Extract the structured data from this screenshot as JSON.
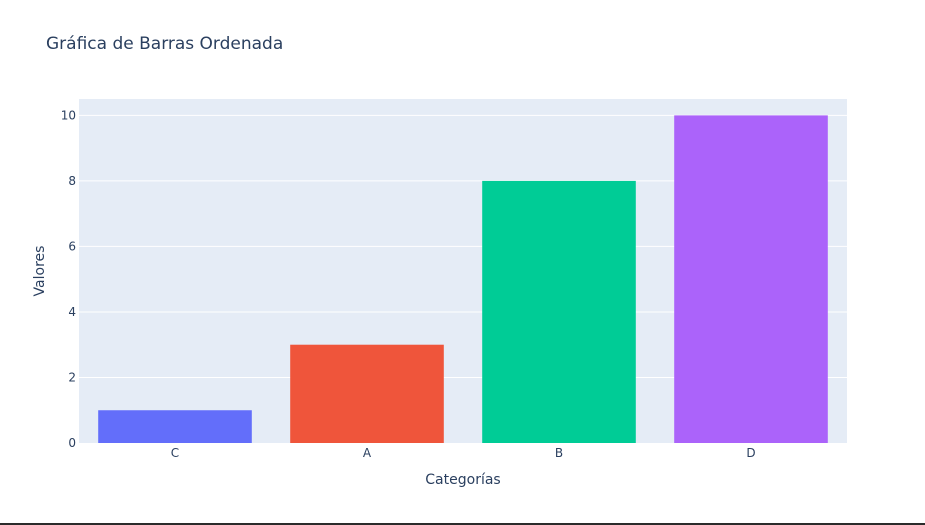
{
  "chart_data": {
    "type": "bar",
    "title": "Gráfica de Barras Ordenada",
    "xlabel": "Categorías",
    "ylabel": "Valores",
    "categories": [
      "C",
      "A",
      "B",
      "D"
    ],
    "values": [
      1,
      3,
      8,
      10
    ],
    "colors": [
      "#636efa",
      "#ef553b",
      "#00cc96",
      "#ab63fa"
    ],
    "ylim": [
      0,
      10.5
    ],
    "yticks": [
      0,
      2,
      4,
      6,
      8,
      10
    ],
    "grid": true,
    "legend": "none",
    "plot_background": "#e5ecf6",
    "gridline_color": "#ffffff"
  }
}
